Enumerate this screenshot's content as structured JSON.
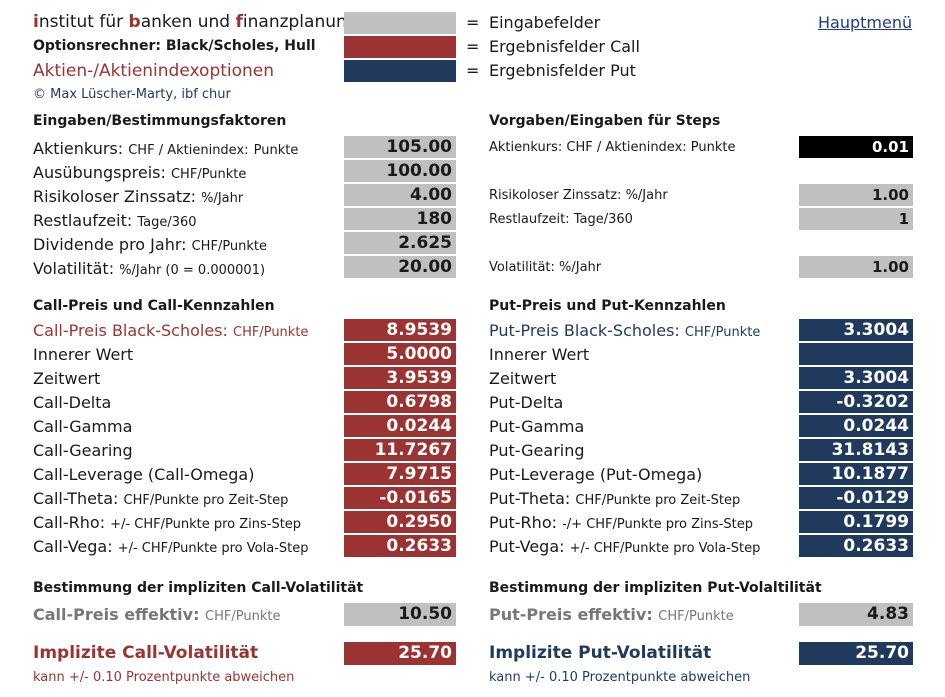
{
  "header": {
    "institute_parts": [
      {
        "initial": "i",
        "rest": "nstitut für "
      },
      {
        "initial": "b",
        "rest": "anken und "
      },
      {
        "initial": "f",
        "rest": "inanzplanung"
      }
    ],
    "subtitle": "Optionsrechner: Black/Scholes, Hull",
    "subtitle2": "Aktien-/Aktienindexoptionen",
    "copyright": "© Max Lüscher-Marty, ibf chur",
    "legend": [
      {
        "eq": "=",
        "label": "Eingabefelder",
        "color": "#c0c0c0"
      },
      {
        "eq": "=",
        "label": "Ergebnisfelder Call",
        "color": "#9c3333"
      },
      {
        "eq": "=",
        "label": "Ergebnisfelder Put",
        "color": "#1f3a5c"
      }
    ],
    "menu_link": "Hauptmenü"
  },
  "inputs": {
    "heading": "Eingaben/Bestimmungsfaktoren",
    "rows": [
      {
        "label": "Aktienkurs:",
        "unit": "CHF / Aktienindex:",
        "unit2": "Punkte",
        "value": "105.00"
      },
      {
        "label": "Ausübungspreis:",
        "unit": "CHF/Punkte",
        "value": "100.00"
      },
      {
        "label": "Risikoloser Zinssatz:",
        "unit": "%/Jahr",
        "value": "4.00"
      },
      {
        "label": "Restlaufzeit:",
        "unit": "Tage/360",
        "value": "180"
      },
      {
        "label": "Dividende pro Jahr:",
        "unit": "CHF/Punkte",
        "value": "2.625"
      },
      {
        "label": "Volatilität:",
        "unit": "%/Jahr (0 = 0.000001)",
        "value": "20.00"
      }
    ]
  },
  "steps": {
    "heading": "Vorgaben/Eingaben für Steps",
    "rows": [
      {
        "label": "Aktienkurs: CHF / Aktienindex: Punkte",
        "value": "0.01"
      },
      {
        "label": "Risikoloser Zinssatz: %/Jahr",
        "value": "1.00"
      },
      {
        "label": "Restlaufzeit: Tage/360",
        "value": "1"
      },
      {
        "label": "Volatilität: %/Jahr",
        "value": "1.00"
      }
    ]
  },
  "call": {
    "heading": "Call-Preis und Call-Kennzahlen",
    "price_label": "Call-Preis Black-Scholes:",
    "price_unit": "CHF/Punkte",
    "price_value": "8.9539",
    "rows": [
      {
        "label": "Innerer Wert",
        "unit": "",
        "value": "5.0000"
      },
      {
        "label": "Zeitwert",
        "unit": "",
        "value": "3.9539"
      },
      {
        "label": "Call-Delta",
        "unit": "",
        "value": "0.6798"
      },
      {
        "label": "Call-Gamma",
        "unit": "",
        "value": "0.0244"
      },
      {
        "label": "Call-Gearing",
        "unit": "",
        "value": "11.7267"
      },
      {
        "label": "Call-Leverage (Call-Omega)",
        "unit": "",
        "value": "7.9715"
      },
      {
        "label": "Call-Theta:",
        "unit": "CHF/Punkte pro Zeit-Step",
        "value": "-0.0165"
      },
      {
        "label": "Call-Rho:",
        "unit": "+/- CHF/Punkte pro Zins-Step",
        "value": "0.2950"
      },
      {
        "label": "Call-Vega:",
        "unit": "+/- CHF/Punkte pro Vola-Step",
        "value": "0.2633"
      }
    ],
    "iv_heading": "Bestimmung der impliziten Call-Volatilität",
    "eff_label": "Call-Preis effektiv:",
    "eff_unit": "CHF/Punkte",
    "eff_value": "10.50",
    "iv_label": "Implizite Call-Volatilität",
    "iv_value": "25.70",
    "note": "kann +/- 0.10 Prozentpunkte abweichen"
  },
  "put": {
    "heading": "Put-Preis und Put-Kennzahlen",
    "price_label": "Put-Preis Black-Scholes:",
    "price_unit": "CHF/Punkte",
    "price_value": "3.3004",
    "rows": [
      {
        "label": "Innerer Wert",
        "unit": "",
        "value": ""
      },
      {
        "label": "Zeitwert",
        "unit": "",
        "value": "3.3004"
      },
      {
        "label": "Put-Delta",
        "unit": "",
        "value": "-0.3202"
      },
      {
        "label": "Put-Gamma",
        "unit": "",
        "value": "0.0244"
      },
      {
        "label": "Put-Gearing",
        "unit": "",
        "value": "31.8143"
      },
      {
        "label": "Put-Leverage (Put-Omega)",
        "unit": "",
        "value": "10.1877"
      },
      {
        "label": "Put-Theta:",
        "unit": "CHF/Punkte pro Zeit-Step",
        "value": "-0.0129"
      },
      {
        "label": "Put-Rho:",
        "unit": "-/+ CHF/Punkte pro Zins-Step",
        "value": "0.1799"
      },
      {
        "label": "Put-Vega:",
        "unit": "+/- CHF/Punkte pro Vola-Step",
        "value": "0.2633"
      }
    ],
    "iv_heading": "Bestimmung der impliziten Put-Volaltilität",
    "eff_label": "Put-Preis effektiv:",
    "eff_unit": "CHF/Punkte",
    "eff_value": "4.83",
    "iv_label": "Implizite Put-Volatilität",
    "iv_value": "25.70",
    "note": "kann +/- 0.10 Prozentpunkte abweichen"
  }
}
